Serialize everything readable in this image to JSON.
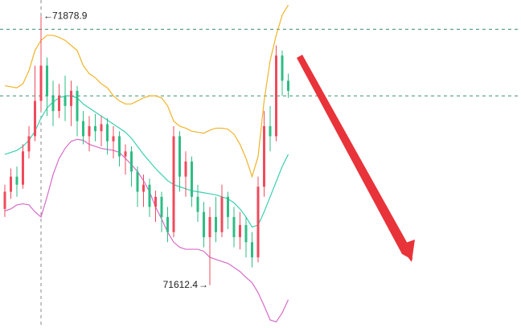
{
  "chart_data": {
    "type": "candlestick",
    "open": [
      71688,
      71705,
      71720,
      71712,
      71745,
      71760,
      71795,
      71830,
      71800,
      71785,
      71800,
      71790,
      71805,
      71775,
      71760,
      71770,
      71765,
      71772,
      71755,
      71760,
      71740,
      71745,
      71725,
      71705,
      71712,
      71690,
      71700,
      71680,
      71665,
      71760,
      71720,
      71735,
      71700,
      71685,
      71660,
      71680,
      71665,
      71700,
      71680,
      71660,
      71672,
      71655,
      71640,
      71710,
      71770,
      71760,
      71840,
      71815
    ],
    "high": [
      71712,
      71728,
      71730,
      71752,
      71770,
      71830,
      71878.9,
      71838,
      71815,
      71812,
      71820,
      71815,
      71810,
      71785,
      71780,
      71782,
      71780,
      71778,
      71770,
      71765,
      71752,
      71750,
      71730,
      71722,
      71718,
      71706,
      71705,
      71690,
      71770,
      71765,
      71745,
      71740,
      71712,
      71695,
      71690,
      71700,
      71712,
      71705,
      71690,
      71685,
      71680,
      71665,
      71720,
      71785,
      71790,
      71850,
      71845,
      71822
    ],
    "low": [
      71680,
      71698,
      71700,
      71708,
      71738,
      71755,
      71785,
      71780,
      71770,
      71778,
      71775,
      71770,
      71760,
      71752,
      71745,
      71755,
      71750,
      71742,
      71738,
      71730,
      71722,
      71710,
      71690,
      71690,
      71680,
      71675,
      71665,
      71655,
      71660,
      71705,
      71700,
      71690,
      71675,
      71650,
      71612.4,
      71655,
      71660,
      71668,
      71650,
      71648,
      71640,
      71630,
      71635,
      71700,
      71745,
      71755,
      71800,
      71798
    ],
    "close": [
      71705,
      71720,
      71712,
      71745,
      71760,
      71795,
      71830,
      71800,
      71785,
      71800,
      71790,
      71805,
      71775,
      71760,
      71770,
      71765,
      71772,
      71755,
      71760,
      71740,
      71745,
      71725,
      71705,
      71712,
      71690,
      71700,
      71680,
      71665,
      71760,
      71720,
      71735,
      71700,
      71685,
      71660,
      71680,
      71665,
      71700,
      71680,
      71660,
      71672,
      71655,
      71640,
      71710,
      71770,
      71760,
      71840,
      71815,
      71805
    ],
    "up_color": "#ef4b5c",
    "down_color": "#2ebd85",
    "bands": [
      {
        "color": "#f0b429",
        "values": [
          71810,
          71809,
          71808,
          71812,
          71825,
          71845,
          71855,
          71860,
          71860,
          71858,
          71855,
          71850,
          71845,
          71830,
          71822,
          71818,
          71812,
          71808,
          71800,
          71795,
          71792,
          71792,
          71795,
          71798,
          71800,
          71800,
          71798,
          71790,
          71775,
          71770,
          71768,
          71765,
          71764,
          71763,
          71766,
          71768,
          71768,
          71767,
          71762,
          71752,
          71738,
          71720,
          71740,
          71795,
          71835,
          71860,
          71880,
          71890
        ]
      },
      {
        "color": "#3ccfb0",
        "values": [
          71742,
          71744,
          71746,
          71750,
          71756,
          71765,
          71778,
          71788,
          71794,
          71798,
          71800,
          71800,
          71798,
          71792,
          71788,
          71784,
          71780,
          71776,
          71772,
          71768,
          71764,
          71758,
          71750,
          71742,
          71735,
          71728,
          71722,
          71716,
          71712,
          71710,
          71708,
          71706,
          71705,
          71704,
          71703,
          71702,
          71700,
          71698,
          71694,
          71688,
          71680,
          71670,
          71672,
          71685,
          71700,
          71715,
          71730,
          71742
        ]
      },
      {
        "color": "#d66bc9",
        "values": [
          71686,
          71688,
          71692,
          71693,
          71692,
          71685,
          71680,
          71700,
          71722,
          71738,
          71748,
          71755,
          71757,
          71756,
          71752,
          71750,
          71748,
          71747,
          71746,
          71744,
          71738,
          71732,
          71725,
          71716,
          71705,
          71690,
          71678,
          71665,
          71655,
          71650,
          71648,
          71648,
          71648,
          71646,
          71640,
          71638,
          71636,
          71634,
          71630,
          71626,
          71620,
          71615,
          71605,
          71592,
          71578,
          71576,
          71585,
          71598
        ]
      }
    ],
    "levels": [
      71866,
      71800
    ],
    "ylim": [
      71570,
      71895
    ]
  }
}
